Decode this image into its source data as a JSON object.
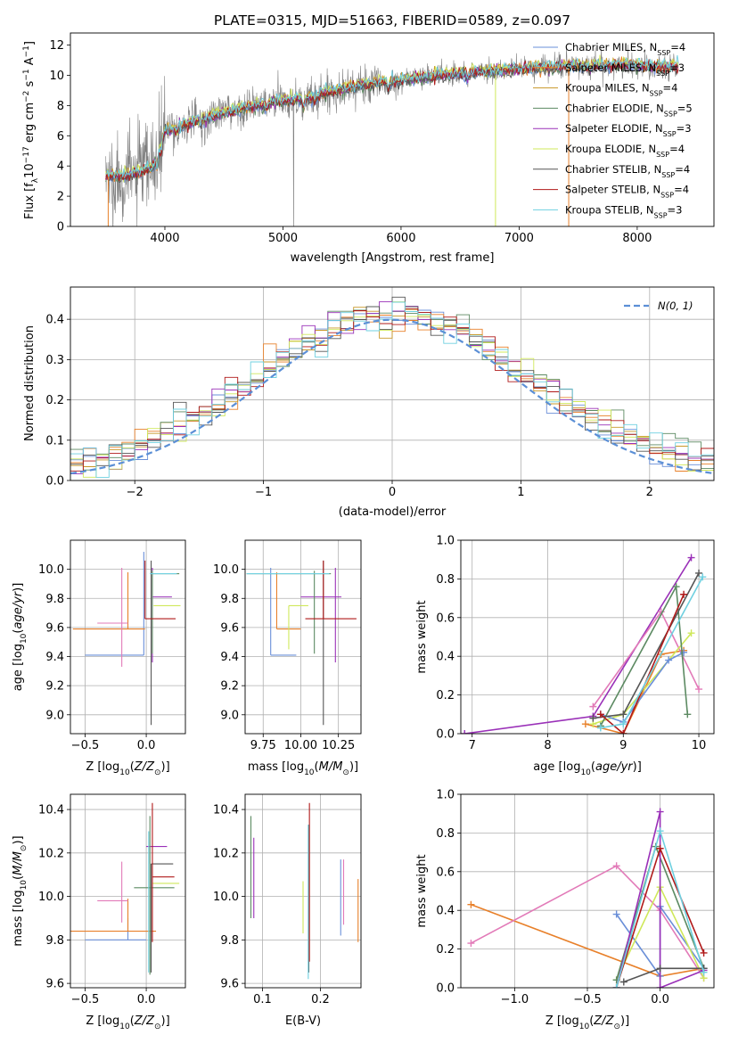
{
  "figure_title": "PLATE=0315, MJD=51663, FIBERID=0589, z=0.097",
  "colors": {
    "Chabrier MILES": "#6a8fd8",
    "Salpeter MILES": "#e8802a",
    "Kroupa MILES": "#c8982a",
    "Chabrier ELODIE": "#5c8a62",
    "Salpeter ELODIE": "#9a30b8",
    "Kroupa ELODIE": "#cfe85a",
    "Chabrier STELIB": "#555555",
    "Salpeter STELIB": "#b01a1a",
    "Kroupa STELIB": "#6fd0e0",
    "data": "#808080",
    "normal": "#5b8fd6",
    "pink": "#e27ab8",
    "orange2": "#e07a20"
  },
  "chart_data": [
    {
      "id": "spectrum",
      "type": "line",
      "xlabel": "wavelength [Angstrom, rest frame]",
      "ylabel": "Flux [f_λ10^-17 erg cm^-2 s^-1 A^-1]",
      "xlim": [
        3200,
        8650
      ],
      "ylim": [
        0,
        12.8
      ],
      "xticks": [
        4000,
        5000,
        6000,
        7000,
        8000
      ],
      "yticks": [
        0,
        2,
        4,
        6,
        8,
        10,
        12
      ],
      "legend": [
        {
          "label": "Chabrier MILES, N",
          "sub": "SSP",
          "suffix": "=4"
        },
        {
          "label": "Salpeter MILES, N",
          "sub": "SSP",
          "suffix": "=3"
        },
        {
          "label": "Kroupa MILES, N",
          "sub": "SSP",
          "suffix": "=4"
        },
        {
          "label": "Chabrier ELODIE, N",
          "sub": "SSP",
          "suffix": "=5"
        },
        {
          "label": "Salpeter ELODIE, N",
          "sub": "SSP",
          "suffix": "=3"
        },
        {
          "label": "Kroupa ELODIE, N",
          "sub": "SSP",
          "suffix": "=4"
        },
        {
          "label": "Chabrier STELIB, N",
          "sub": "SSP",
          "suffix": "=4"
        },
        {
          "label": "Salpeter STELIB, N",
          "sub": "SSP",
          "suffix": "=4"
        },
        {
          "label": "Kroupa STELIB, N",
          "sub": "SSP",
          "suffix": "=3"
        }
      ],
      "continuum": [
        [
          3500,
          3.3
        ],
        [
          3700,
          3.4
        ],
        [
          3900,
          3.9
        ],
        [
          4000,
          6.3
        ],
        [
          4300,
          7.1
        ],
        [
          4600,
          7.7
        ],
        [
          4900,
          8.2
        ],
        [
          5200,
          8.5
        ],
        [
          5500,
          9.1
        ],
        [
          5800,
          9.5
        ],
        [
          6000,
          9.7
        ],
        [
          6300,
          10.0
        ],
        [
          6600,
          10.2
        ],
        [
          7000,
          10.4
        ],
        [
          7400,
          10.6
        ],
        [
          7800,
          10.7
        ],
        [
          8300,
          10.6
        ]
      ]
    },
    {
      "id": "residuals",
      "type": "step",
      "xlabel": "(data-model)/error",
      "ylabel": "Normed distribution",
      "xlim": [
        -2.5,
        2.5
      ],
      "ylim": [
        0,
        0.48
      ],
      "xticks": [
        -2,
        -1,
        0,
        1,
        2
      ],
      "yticks": [
        0.0,
        0.1,
        0.2,
        0.3,
        0.4
      ],
      "legend_label": "N(0, 1)",
      "bin_width": 0.1
    },
    {
      "id": "age_vs_Z",
      "type": "errorbar",
      "xlabel": "Z [log10(Z/Z⊙)]",
      "ylabel": "age [log10(age/yr)]",
      "xlim": [
        -0.62,
        0.32
      ],
      "ylim": [
        8.87,
        10.2
      ],
      "xticks": [
        -0.5,
        0.0
      ],
      "yticks": [
        9.0,
        9.2,
        9.4,
        9.6,
        9.8,
        10.0
      ],
      "points": [
        {
          "s": "Chabrier MILES",
          "x": -0.02,
          "xe": [
            0.48,
            0.0
          ],
          "y": 9.41,
          "ye": [
            0.0,
            0.71
          ]
        },
        {
          "s": "Salpeter MILES",
          "x": -0.15,
          "xe": [
            0.45,
            0.14
          ],
          "y": 9.59,
          "ye": [
            0.0,
            0.39
          ]
        },
        {
          "s": "pink",
          "x": -0.2,
          "xe": [
            0.2,
            0.05
          ],
          "y": 9.63,
          "ye": [
            0.3,
            0.38
          ]
        },
        {
          "s": "Kroupa ELODIE",
          "x": 0.06,
          "xe": [
            0.0,
            0.22
          ],
          "y": 9.75,
          "ye": [
            0.0,
            0.0
          ]
        },
        {
          "s": "Salpeter ELODIE",
          "x": 0.05,
          "xe": [
            0.0,
            0.16
          ],
          "y": 9.81,
          "ye": [
            0.45,
            0.2
          ]
        },
        {
          "s": "Chabrier ELODIE",
          "x": 0.05,
          "xe": [
            0.0,
            0.22
          ],
          "y": 9.97,
          "ye": [
            0.55,
            0.02
          ]
        },
        {
          "s": "Chabrier STELIB",
          "x": 0.04,
          "xe": [
            0.0,
            0.0
          ],
          "y": 9.66,
          "ye": [
            0.73,
            0.4
          ]
        },
        {
          "s": "Salpeter STELIB",
          "x": -0.01,
          "xe": [
            0.0,
            0.25
          ],
          "y": 9.66,
          "ye": [
            0.0,
            0.4
          ]
        },
        {
          "s": "Kroupa STELIB",
          "x": 0.03,
          "xe": [
            0.0,
            0.22
          ],
          "y": 9.97,
          "ye": [
            0.0,
            0.0
          ]
        }
      ]
    },
    {
      "id": "age_vs_mass",
      "type": "errorbar",
      "xlabel": "mass [log10(M/M⊙)]",
      "ylabel": "",
      "xlim": [
        9.63,
        10.4
      ],
      "ylim": [
        8.87,
        10.2
      ],
      "xticks": [
        9.75,
        10.0,
        10.25
      ],
      "yticks": [
        9.0,
        9.2,
        9.4,
        9.6,
        9.8,
        10.0
      ],
      "points": [
        {
          "s": "Chabrier MILES",
          "x": 9.8,
          "xe": [
            0.0,
            0.17
          ],
          "y": 9.41,
          "ye": [
            0.0,
            0.6
          ]
        },
        {
          "s": "Salpeter MILES",
          "x": 9.84,
          "xe": [
            0.0,
            0.16
          ],
          "y": 9.59,
          "ye": [
            0.0,
            0.39
          ]
        },
        {
          "s": "Kroupa ELODIE",
          "x": 9.92,
          "xe": [
            0.0,
            0.13
          ],
          "y": 9.75,
          "ye": [
            0.3,
            0.0
          ]
        },
        {
          "s": "Salpeter ELODIE",
          "x": 10.23,
          "xe": [
            0.23,
            0.04
          ],
          "y": 9.81,
          "ye": [
            0.45,
            0.2
          ]
        },
        {
          "s": "Chabrier ELODIE",
          "x": 10.09,
          "xe": [
            0.45,
            0.11
          ],
          "y": 9.97,
          "ye": [
            0.55,
            0.02
          ]
        },
        {
          "s": "Chabrier STELIB",
          "x": 10.15,
          "xe": [
            0.0,
            0.0
          ],
          "y": 9.66,
          "ye": [
            0.73,
            0.4
          ]
        },
        {
          "s": "Salpeter STELIB",
          "x": 10.15,
          "xe": [
            0.12,
            0.22
          ],
          "y": 9.66,
          "ye": [
            0.0,
            0.4
          ]
        },
        {
          "s": "Kroupa STELIB",
          "x": 10.05,
          "xe": [
            0.41,
            0.14
          ],
          "y": 9.97,
          "ye": [
            0.0,
            0.0
          ]
        }
      ]
    },
    {
      "id": "weight_vs_age",
      "type": "line",
      "xlabel": "age [log10(age/yr)]",
      "ylabel": "mass weight",
      "xlim": [
        6.85,
        10.2
      ],
      "ylim": [
        0,
        1.0
      ],
      "xticks": [
        7,
        8,
        9,
        10
      ],
      "yticks": [
        0.0,
        0.2,
        0.4,
        0.6,
        0.8,
        1.0
      ],
      "series": [
        {
          "s": "Salpeter ELODIE",
          "pts": [
            [
              6.9,
              0.0
            ],
            [
              8.6,
              0.09
            ],
            [
              9.9,
              0.91
            ]
          ]
        },
        {
          "s": "Salpeter MILES",
          "pts": [
            [
              8.5,
              0.05
            ],
            [
              9.0,
              0.0
            ],
            [
              9.5,
              0.41
            ],
            [
              9.8,
              0.43
            ]
          ]
        },
        {
          "s": "pink",
          "pts": [
            [
              8.6,
              0.14
            ],
            [
              9.5,
              0.63
            ],
            [
              10.0,
              0.23
            ]
          ]
        },
        {
          "s": "Kroupa ELODIE",
          "pts": [
            [
              8.6,
              0.05
            ],
            [
              9.0,
              0.1
            ],
            [
              9.9,
              0.52
            ]
          ]
        },
        {
          "s": "Chabrier MILES",
          "pts": [
            [
              8.7,
              0.1
            ],
            [
              9.0,
              0.06
            ],
            [
              9.6,
              0.38
            ],
            [
              9.8,
              0.42
            ]
          ]
        },
        {
          "s": "Chabrier ELODIE",
          "pts": [
            [
              8.7,
              0.04
            ],
            [
              9.7,
              0.76
            ],
            [
              9.85,
              0.1
            ]
          ]
        },
        {
          "s": "Chabrier STELIB",
          "pts": [
            [
              8.6,
              0.08
            ],
            [
              9.0,
              0.1
            ],
            [
              10.0,
              0.83
            ]
          ]
        },
        {
          "s": "Salpeter STELIB",
          "pts": [
            [
              8.7,
              0.1
            ],
            [
              9.0,
              0.0
            ],
            [
              9.8,
              0.72
            ]
          ]
        },
        {
          "s": "Kroupa STELIB",
          "pts": [
            [
              8.7,
              0.03
            ],
            [
              9.0,
              0.05
            ],
            [
              10.05,
              0.81
            ]
          ]
        }
      ]
    },
    {
      "id": "mass_vs_Z",
      "type": "errorbar",
      "xlabel": "Z [log10(Z/Z⊙)]",
      "ylabel": "mass [log10(M/M⊙)]",
      "xlim": [
        -0.62,
        0.32
      ],
      "ylim": [
        9.58,
        10.47
      ],
      "xticks": [
        -0.5,
        0.0
      ],
      "yticks": [
        9.6,
        9.8,
        10.0,
        10.2,
        10.4
      ],
      "points": [
        {
          "s": "Chabrier MILES",
          "x": -0.15,
          "xe": [
            0.35,
            0.15
          ],
          "y": 9.8,
          "ye": [
            0.0,
            0.1
          ]
        },
        {
          "s": "Salpeter MILES",
          "x": -0.15,
          "xe": [
            0.47,
            0.23
          ],
          "y": 9.84,
          "ye": [
            0.0,
            0.15
          ]
        },
        {
          "s": "pink",
          "x": -0.2,
          "xe": [
            0.2,
            0.05
          ],
          "y": 9.98,
          "ye": [
            0.1,
            0.18
          ]
        },
        {
          "s": "Kroupa ELODIE",
          "x": 0.05,
          "xe": [
            0.0,
            0.22
          ],
          "y": 10.06,
          "ye": [
            0.0,
            0.0
          ]
        },
        {
          "s": "Salpeter ELODIE",
          "x": 0.05,
          "xe": [
            0.05,
            0.12
          ],
          "y": 10.23,
          "ye": [
            0.0,
            0.0
          ]
        },
        {
          "s": "Chabrier ELODIE",
          "x": 0.03,
          "xe": [
            0.13,
            0.2
          ],
          "y": 10.04,
          "ye": [
            0.4,
            0.33
          ]
        },
        {
          "s": "Chabrier STELIB",
          "x": 0.04,
          "xe": [
            0.0,
            0.18
          ],
          "y": 10.15,
          "ye": [
            0.5,
            0.0
          ]
        },
        {
          "s": "Salpeter STELIB",
          "x": 0.05,
          "xe": [
            0.0,
            0.18
          ],
          "y": 10.09,
          "ye": [
            0.3,
            0.34
          ]
        },
        {
          "s": "Kroupa STELIB",
          "x": 0.02,
          "xe": [
            0.0,
            0.0
          ],
          "y": 10.0,
          "ye": [
            0.35,
            0.3
          ]
        }
      ]
    },
    {
      "id": "mass_vs_EBV",
      "type": "errorbar",
      "xlabel": "E(B-V)",
      "ylabel": "",
      "xlim": [
        0.07,
        0.27
      ],
      "ylim": [
        9.58,
        10.47
      ],
      "xticks": [
        0.1,
        0.2
      ],
      "yticks": [
        9.6,
        9.8,
        10.0,
        10.2,
        10.4
      ],
      "points": [
        {
          "s": "Chabrier ELODIE",
          "x": 0.08,
          "xe": [
            0.0,
            0.0
          ],
          "y": 10.0,
          "ye": [
            0.1,
            0.37
          ]
        },
        {
          "s": "Salpeter ELODIE",
          "x": 0.085,
          "xe": [
            0.0,
            0.0
          ],
          "y": 10.1,
          "ye": [
            0.2,
            0.17
          ]
        },
        {
          "s": "Kroupa ELODIE",
          "x": 0.17,
          "xe": [
            0.0,
            0.0
          ],
          "y": 10.0,
          "ye": [
            0.17,
            0.07
          ]
        },
        {
          "s": "Chabrier STELIB",
          "x": 0.18,
          "xe": [
            0.0,
            0.0
          ],
          "y": 10.0,
          "ye": [
            0.35,
            0.33
          ]
        },
        {
          "s": "Salpeter STELIB",
          "x": 0.181,
          "xe": [
            0.0,
            0.0
          ],
          "y": 10.1,
          "ye": [
            0.4,
            0.33
          ]
        },
        {
          "s": "Kroupa STELIB",
          "x": 0.179,
          "xe": [
            0.0,
            0.0
          ],
          "y": 10.0,
          "ye": [
            0.38,
            0.33
          ]
        },
        {
          "s": "Chabrier MILES",
          "x": 0.235,
          "xe": [
            0.0,
            0.0
          ],
          "y": 10.0,
          "ye": [
            0.18,
            0.17
          ]
        },
        {
          "s": "pink",
          "x": 0.24,
          "xe": [
            0.0,
            0.0
          ],
          "y": 10.0,
          "ye": [
            0.13,
            0.17
          ]
        },
        {
          "s": "Salpeter MILES",
          "x": 0.265,
          "xe": [
            0.0,
            0.0
          ],
          "y": 9.94,
          "ye": [
            0.15,
            0.14
          ]
        }
      ]
    },
    {
      "id": "weight_vs_Z",
      "type": "line",
      "xlabel": "Z [log10(Z/Z⊙)]",
      "ylabel": "mass weight",
      "xlim": [
        -1.37,
        0.37
      ],
      "ylim": [
        0,
        1.0
      ],
      "xticks": [
        -1.0,
        -0.5,
        0.0
      ],
      "yticks": [
        0.0,
        0.2,
        0.4,
        0.6,
        0.8,
        1.0
      ],
      "series": [
        {
          "s": "Salpeter MILES",
          "pts": [
            [
              -1.3,
              0.43
            ],
            [
              0.0,
              0.06
            ],
            [
              0.3,
              0.1
            ]
          ]
        },
        {
          "s": "pink",
          "pts": [
            [
              -1.3,
              0.23
            ],
            [
              -0.3,
              0.63
            ],
            [
              0.0,
              0.4
            ],
            [
              0.3,
              0.05
            ]
          ]
        },
        {
          "s": "Chabrier MILES",
          "pts": [
            [
              -0.3,
              0.38
            ],
            [
              0.0,
              0.06
            ],
            [
              0.0,
              0.42
            ],
            [
              0.3,
              0.1
            ]
          ]
        },
        {
          "s": "Kroupa ELODIE",
          "pts": [
            [
              -0.3,
              0.04
            ],
            [
              0.0,
              0.52
            ],
            [
              0.3,
              0.05
            ]
          ]
        },
        {
          "s": "Chabrier ELODIE",
          "pts": [
            [
              -0.3,
              0.04
            ],
            [
              -0.03,
              0.73
            ],
            [
              0.3,
              0.1
            ]
          ]
        },
        {
          "s": "Salpeter ELODIE",
          "pts": [
            [
              -0.3,
              0.0
            ],
            [
              0.0,
              0.91
            ],
            [
              0.0,
              0.0
            ],
            [
              0.3,
              0.09
            ]
          ]
        },
        {
          "s": "Chabrier STELIB",
          "pts": [
            [
              -0.25,
              0.03
            ],
            [
              0.0,
              0.1
            ],
            [
              0.3,
              0.1
            ]
          ]
        },
        {
          "s": "Salpeter STELIB",
          "pts": [
            [
              -0.3,
              0.0
            ],
            [
              0.0,
              0.72
            ],
            [
              0.3,
              0.18
            ]
          ]
        },
        {
          "s": "Kroupa STELIB",
          "pts": [
            [
              -0.3,
              0.0
            ],
            [
              0.0,
              0.81
            ],
            [
              0.3,
              0.08
            ]
          ]
        }
      ]
    }
  ]
}
